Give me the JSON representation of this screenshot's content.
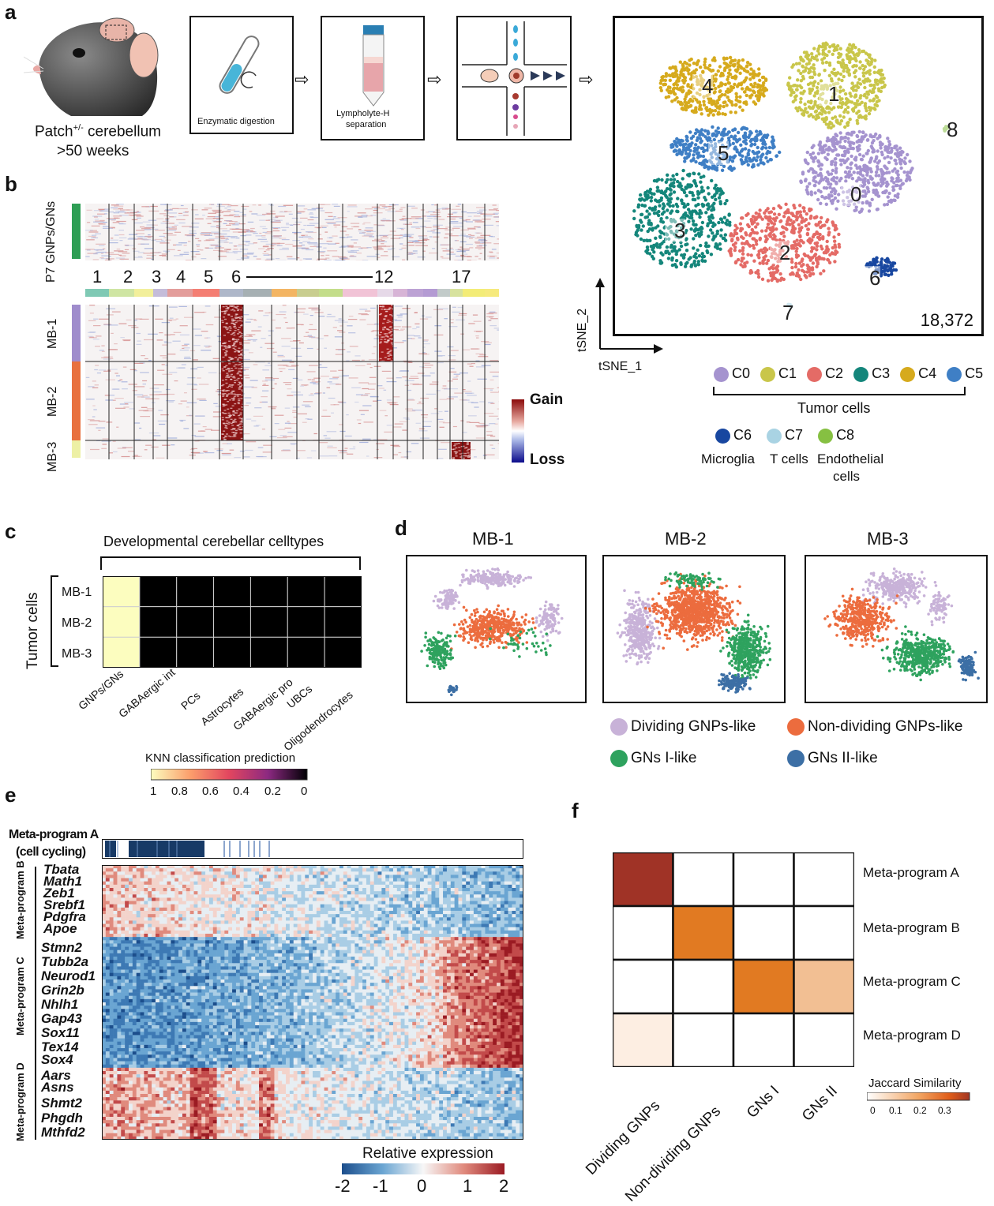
{
  "panels": {
    "a": "a",
    "b": "b",
    "c": "c",
    "d": "d",
    "e": "e",
    "f": "f"
  },
  "panel_a": {
    "mouse_label_line1": "Patch",
    "mouse_sup": "+/-",
    "mouse_label_line1_rest": " cerebellum",
    "mouse_label_line2": ">50 weeks",
    "step1": "Enzymatic digestion",
    "step2_line1": "Lympholyte-H",
    "step2_line2": "separation",
    "tsne_total": "18,372",
    "axis_x": "tSNE_1",
    "axis_y": "tSNE_2",
    "clusters": [
      {
        "id": "0",
        "label": "C0",
        "color": "#a593cf"
      },
      {
        "id": "1",
        "label": "C1",
        "color": "#c9c64a"
      },
      {
        "id": "2",
        "label": "C2",
        "color": "#e46b66"
      },
      {
        "id": "3",
        "label": "C3",
        "color": "#14867b"
      },
      {
        "id": "4",
        "label": "C4",
        "color": "#d6aa1d"
      },
      {
        "id": "5",
        "label": "C5",
        "color": "#3f7fc5"
      },
      {
        "id": "6",
        "label": "C6",
        "color": "#1847a0"
      },
      {
        "id": "7",
        "label": "C7",
        "color": "#a9d3e3"
      },
      {
        "id": "8",
        "label": "C8",
        "color": "#86c042"
      }
    ],
    "tumor_cells_label": "Tumor cells",
    "microglia": "Microglia",
    "tcells": "T cells",
    "endothelial_1": "Endothelial",
    "endothelial_2": "cells"
  },
  "panel_b": {
    "ref_label": "P7 GNPs/GNs",
    "chromosomes": [
      "1",
      "2",
      "3",
      "4",
      "5",
      "6",
      "12",
      "17"
    ],
    "samples": [
      "MB-1",
      "MB-2",
      "MB-3"
    ],
    "gain": "Gain",
    "loss": "Loss"
  },
  "panel_c": {
    "title": "Developmental cerebellar celltypes",
    "row_group": "Tumor cells",
    "rows": [
      "MB-1",
      "MB-2",
      "MB-3"
    ],
    "cols": [
      "GNPs/GNs",
      "GABAergic int",
      "PCs",
      "Astrocytes",
      "GABAergic pro",
      "UBCs",
      "Oligodendrocytes"
    ],
    "values": [
      [
        1,
        0,
        0,
        0,
        0,
        0,
        0
      ],
      [
        1,
        0,
        0,
        0,
        0,
        0,
        0
      ],
      [
        1,
        0,
        0,
        0,
        0,
        0,
        0
      ]
    ],
    "scale_title": "KNN classification prediction",
    "scale_ticks": [
      "1",
      "0.8",
      "0.6",
      "0.4",
      "0.2",
      "0"
    ]
  },
  "panel_d": {
    "titles": [
      "MB-1",
      "MB-2",
      "MB-3"
    ],
    "legend": [
      {
        "label": "Dividing GNPs-like",
        "color": "#c8b2d8"
      },
      {
        "label": "Non-dividing GNPs-like",
        "color": "#ec6c3e"
      },
      {
        "label": "GNs I-like",
        "color": "#2ea25e"
      },
      {
        "label": "GNs II-like",
        "color": "#3c6fa5"
      }
    ]
  },
  "panel_e": {
    "meta_a_1": "Meta-program A",
    "meta_a_2": "(cell cycling)",
    "groups": [
      {
        "name": "Meta-program B",
        "genes": [
          "Tbata",
          "Math1",
          "Zeb1",
          "Srebf1",
          "Pdgfra",
          "Apoe"
        ]
      },
      {
        "name": "Meta-program C",
        "genes": [
          "Stmn2",
          "Tubb2a",
          "Neurod1",
          "Grin2b",
          "Nhlh1",
          "Gap43",
          "Sox11",
          "Tex14",
          "Sox4"
        ]
      },
      {
        "name": "Meta-program D",
        "genes": [
          "Aars",
          "Asns",
          "Shmt2",
          "Phgdh",
          "Mthfd2"
        ]
      }
    ],
    "scale_title": "Relative expression",
    "scale_ticks": [
      "-2",
      "-1",
      "0",
      "1",
      "2"
    ]
  },
  "panel_f": {
    "rows": [
      "Meta-program A",
      "Meta-program B",
      "Meta-program C",
      "Meta-program D"
    ],
    "cols": [
      "Dividing GNPs",
      "Non-dividing GNPs",
      "GNs I",
      "GNs II"
    ],
    "values": [
      [
        0.38,
        0,
        0,
        0
      ],
      [
        0,
        0.3,
        0,
        0
      ],
      [
        0,
        0,
        0.3,
        0.14
      ],
      [
        0.03,
        0,
        0,
        0
      ]
    ],
    "scale_title": "Jaccard Similarity",
    "scale_ticks": [
      "0",
      "0.1",
      "0.2",
      "0.3"
    ]
  },
  "chart_data": [
    {
      "type": "heatmap",
      "title": "Developmental cerebellar celltypes",
      "rows": [
        "MB-1",
        "MB-2",
        "MB-3"
      ],
      "cols": [
        "GNPs/GNs",
        "GABAergic int",
        "PCs",
        "Astrocytes",
        "GABAergic pro",
        "UBCs",
        "Oligodendrocytes"
      ],
      "values": [
        [
          1,
          0,
          0,
          0,
          0,
          0,
          0
        ],
        [
          1,
          0,
          0,
          0,
          0,
          0,
          0
        ],
        [
          1,
          0,
          0,
          0,
          0,
          0,
          0
        ]
      ],
      "colorbar": "KNN classification prediction"
    },
    {
      "type": "heatmap",
      "rows": [
        "Meta-program A",
        "Meta-program B",
        "Meta-program C",
        "Meta-program D"
      ],
      "cols": [
        "Dividing GNPs",
        "Non-dividing GNPs",
        "GNs I",
        "GNs II"
      ],
      "values": [
        [
          0.38,
          0,
          0,
          0
        ],
        [
          0,
          0.3,
          0,
          0
        ],
        [
          0,
          0,
          0.3,
          0.14
        ],
        [
          0.03,
          0,
          0,
          0
        ]
      ],
      "colorbar": "Jaccard Similarity"
    }
  ]
}
